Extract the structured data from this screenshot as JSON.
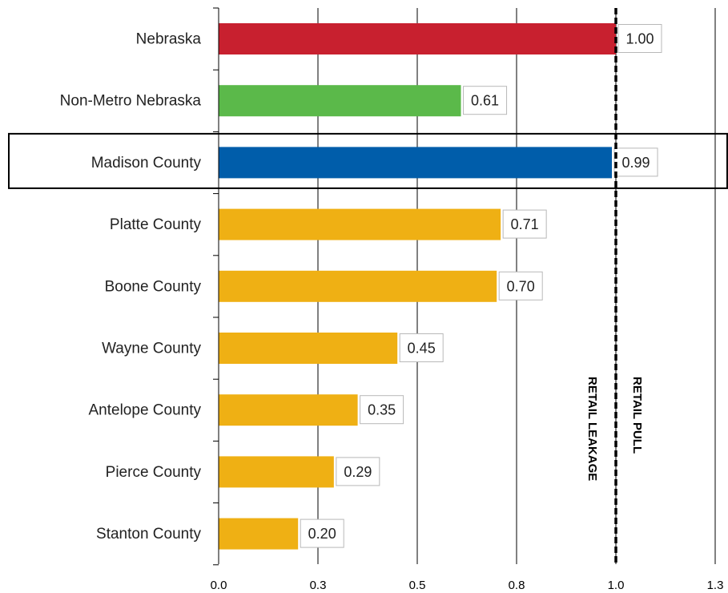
{
  "chart_data": {
    "type": "bar",
    "orientation": "horizontal",
    "title": "",
    "xlabel": "",
    "ylabel": "",
    "xlim": [
      0,
      1.3
    ],
    "x_ticks": [
      0.0,
      0.25,
      0.5,
      0.75,
      1.0,
      1.25
    ],
    "x_tick_labels": [
      "0.0",
      "0.3",
      "0.5",
      "0.8",
      "1.0",
      "1.3"
    ],
    "grid": "vertical",
    "categories": [
      "Nebraska",
      "Non-Metro Nebraska",
      "Madison County",
      "Platte County",
      "Boone County",
      "Wayne County",
      "Antelope County",
      "Pierce County",
      "Stanton County"
    ],
    "values": [
      1.0,
      0.61,
      0.99,
      0.71,
      0.7,
      0.45,
      0.35,
      0.29,
      0.2
    ],
    "value_labels": [
      "1.00",
      "0.61",
      "0.99",
      "0.71",
      "0.70",
      "0.45",
      "0.35",
      "0.29",
      "0.20"
    ],
    "bar_colors": [
      "#C8202F",
      "#5BB94A",
      "#005DAA",
      "#EFB014",
      "#EFB014",
      "#EFB014",
      "#EFB014",
      "#EFB014",
      "#EFB014"
    ],
    "highlighted_category": "Madison County",
    "reference_line": {
      "x": 1.0,
      "style": "dashed",
      "left_annotation": "RETAIL LEAKAGE",
      "right_annotation": "RETAIL PULL"
    }
  }
}
